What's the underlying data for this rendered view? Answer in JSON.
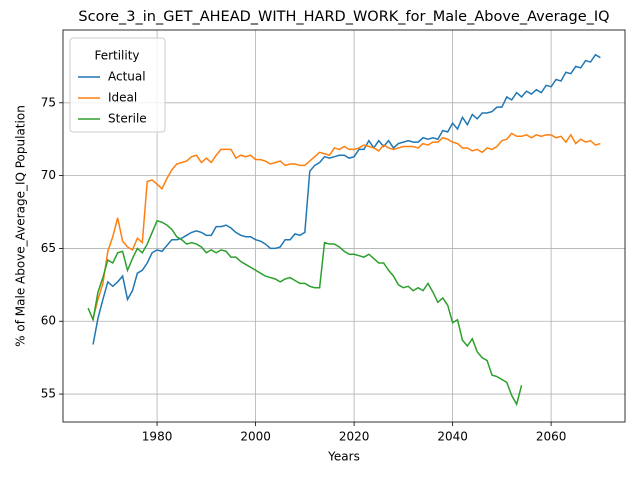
{
  "chart_data": {
    "type": "line",
    "title": "Score_3_in_GET_AHEAD_WITH_HARD_WORK_for_Male_Above_Average_IQ",
    "xlabel": "Years",
    "ylabel": "% of Male Above_Average_IQ Population",
    "xlim": [
      1960.9,
      2075
    ],
    "ylim": [
      53.08,
      80.0
    ],
    "xticks": [
      1980,
      2000,
      2020,
      2040,
      2060
    ],
    "yticks": [
      55,
      60,
      65,
      70,
      75
    ],
    "grid": true,
    "legend_title": "Fertility",
    "legend_loc": "upper left",
    "series": [
      {
        "name": "Actual",
        "color": "#1f77b4",
        "x": [
          1967,
          1968,
          1969,
          1970,
          1971,
          1972,
          1973,
          1974,
          1975,
          1976,
          1977,
          1978,
          1979,
          1980,
          1981,
          1982,
          1983,
          1984,
          1985,
          1986,
          1987,
          1988,
          1989,
          1990,
          1991,
          1992,
          1993,
          1994,
          1995,
          1996,
          1997,
          1998,
          1999,
          2000,
          2001,
          2002,
          2003,
          2004,
          2005,
          2006,
          2007,
          2008,
          2009,
          2010,
          2011,
          2012,
          2013,
          2014,
          2015,
          2016,
          2017,
          2018,
          2019,
          2020,
          2021,
          2022,
          2023,
          2024,
          2025,
          2026,
          2027,
          2028,
          2029,
          2030,
          2031,
          2032,
          2033,
          2034,
          2035,
          2036,
          2037,
          2038,
          2039,
          2040,
          2041,
          2042,
          2043,
          2044,
          2045,
          2046,
          2047,
          2048,
          2049,
          2050,
          2051,
          2052,
          2053,
          2054,
          2055,
          2056,
          2057,
          2058,
          2059,
          2060,
          2061,
          2062,
          2063,
          2064,
          2065,
          2066,
          2067,
          2068,
          2069,
          2070
        ],
        "values": [
          58.4,
          60.2,
          61.5,
          62.7,
          62.4,
          62.7,
          63.1,
          61.5,
          62.1,
          63.3,
          63.5,
          64.0,
          64.7,
          64.9,
          64.8,
          65.2,
          65.6,
          65.6,
          65.7,
          65.9,
          66.1,
          66.2,
          66.1,
          65.9,
          65.9,
          66.5,
          66.5,
          66.6,
          66.4,
          66.1,
          65.9,
          65.8,
          65.8,
          65.6,
          65.5,
          65.3,
          65.0,
          65.0,
          65.1,
          65.6,
          65.6,
          66.0,
          65.9,
          66.1,
          70.3,
          70.7,
          70.9,
          71.3,
          71.2,
          71.3,
          71.4,
          71.4,
          71.2,
          71.3,
          71.8,
          71.8,
          72.4,
          71.9,
          72.4,
          72.0,
          72.4,
          71.9,
          72.2,
          72.3,
          72.4,
          72.3,
          72.3,
          72.6,
          72.5,
          72.6,
          72.5,
          73.1,
          73.0,
          73.6,
          73.2,
          74.0,
          73.5,
          74.2,
          73.9,
          74.3,
          74.3,
          74.4,
          74.7,
          74.7,
          75.4,
          75.2,
          75.7,
          75.4,
          75.8,
          75.6,
          75.9,
          75.7,
          76.2,
          76.1,
          76.6,
          76.5,
          77.1,
          77.0,
          77.5,
          77.4,
          77.9,
          77.8,
          78.3,
          78.1
        ]
      },
      {
        "name": "Ideal",
        "color": "#ff7f0e",
        "x": [
          1967,
          1968,
          1969,
          1970,
          1971,
          1972,
          1973,
          1974,
          1975,
          1976,
          1977,
          1978,
          1979,
          1980,
          1981,
          1982,
          1983,
          1984,
          1985,
          1986,
          1987,
          1988,
          1989,
          1990,
          1991,
          1992,
          1993,
          1994,
          1995,
          1996,
          1997,
          1998,
          1999,
          2000,
          2001,
          2002,
          2003,
          2004,
          2005,
          2006,
          2007,
          2008,
          2009,
          2010,
          2011,
          2012,
          2013,
          2014,
          2015,
          2016,
          2017,
          2018,
          2019,
          2020,
          2021,
          2022,
          2023,
          2024,
          2025,
          2026,
          2027,
          2028,
          2029,
          2030,
          2031,
          2032,
          2033,
          2034,
          2035,
          2036,
          2037,
          2038,
          2039,
          2040,
          2041,
          2042,
          2043,
          2044,
          2045,
          2046,
          2047,
          2048,
          2049,
          2050,
          2051,
          2052,
          2053,
          2054,
          2055,
          2056,
          2057,
          2058,
          2059,
          2060,
          2061,
          2062,
          2063,
          2064,
          2065,
          2066,
          2067,
          2068,
          2069,
          2070
        ],
        "values": [
          60.2,
          61.5,
          62.6,
          64.8,
          65.8,
          67.1,
          65.5,
          65.1,
          64.9,
          65.7,
          65.4,
          69.6,
          69.7,
          69.4,
          69.1,
          69.8,
          70.4,
          70.8,
          70.9,
          71.0,
          71.3,
          71.4,
          70.9,
          71.2,
          70.9,
          71.4,
          71.8,
          71.8,
          71.8,
          71.2,
          71.4,
          71.3,
          71.4,
          71.1,
          71.1,
          71.0,
          70.8,
          70.9,
          71.0,
          70.7,
          70.8,
          70.8,
          70.7,
          70.7,
          71.0,
          71.3,
          71.6,
          71.5,
          71.4,
          71.9,
          71.8,
          72.0,
          71.8,
          71.8,
          71.9,
          72.1,
          72.0,
          71.9,
          71.7,
          72.1,
          71.9,
          71.8,
          71.9,
          72.0,
          72.0,
          72.0,
          71.9,
          72.2,
          72.1,
          72.3,
          72.3,
          72.6,
          72.5,
          72.3,
          72.2,
          71.9,
          71.9,
          71.7,
          71.8,
          71.6,
          71.9,
          71.8,
          72.0,
          72.4,
          72.5,
          72.9,
          72.7,
          72.7,
          72.8,
          72.6,
          72.8,
          72.7,
          72.8,
          72.8,
          72.6,
          72.7,
          72.3,
          72.8,
          72.2,
          72.5,
          72.3,
          72.4,
          72.1,
          72.2
        ]
      },
      {
        "name": "Sterile",
        "color": "#2ca02c",
        "x": [
          1966,
          1967,
          1968,
          1969,
          1970,
          1971,
          1972,
          1973,
          1974,
          1975,
          1976,
          1977,
          1978,
          1979,
          1980,
          1981,
          1982,
          1983,
          1984,
          1985,
          1986,
          1987,
          1988,
          1989,
          1990,
          1991,
          1992,
          1993,
          1994,
          1995,
          1996,
          1997,
          1998,
          1999,
          2000,
          2001,
          2002,
          2003,
          2004,
          2005,
          2006,
          2007,
          2008,
          2009,
          2010,
          2011,
          2012,
          2013,
          2014,
          2015,
          2016,
          2017,
          2018,
          2019,
          2020,
          2021,
          2022,
          2023,
          2024,
          2025,
          2026,
          2027,
          2028,
          2029,
          2030,
          2031,
          2032,
          2033,
          2034,
          2035,
          2036,
          2037,
          2038,
          2039,
          2040,
          2041,
          2042,
          2043,
          2044,
          2045,
          2046,
          2047,
          2048,
          2049,
          2050,
          2051,
          2052,
          2053,
          2054
        ],
        "values": [
          60.9,
          60.1,
          62.0,
          63.0,
          64.2,
          64.0,
          64.7,
          64.8,
          63.5,
          64.3,
          65.0,
          64.7,
          65.3,
          66.1,
          66.9,
          66.8,
          66.6,
          66.3,
          65.8,
          65.6,
          65.3,
          65.4,
          65.3,
          65.1,
          64.7,
          64.9,
          64.7,
          64.9,
          64.8,
          64.4,
          64.4,
          64.1,
          63.9,
          63.7,
          63.5,
          63.3,
          63.1,
          63.0,
          62.9,
          62.7,
          62.9,
          63.0,
          62.8,
          62.6,
          62.6,
          62.4,
          62.3,
          62.3,
          65.4,
          65.3,
          65.3,
          65.1,
          64.8,
          64.6,
          64.6,
          64.5,
          64.4,
          64.6,
          64.3,
          64.0,
          64.0,
          63.5,
          63.1,
          62.5,
          62.3,
          62.4,
          62.1,
          62.3,
          62.1,
          62.6,
          62.0,
          61.3,
          61.6,
          61.1,
          59.9,
          60.1,
          58.7,
          58.3,
          58.8,
          57.9,
          57.5,
          57.3,
          56.3,
          56.2,
          56.0,
          55.8,
          54.9,
          54.3,
          55.6
        ]
      }
    ]
  }
}
